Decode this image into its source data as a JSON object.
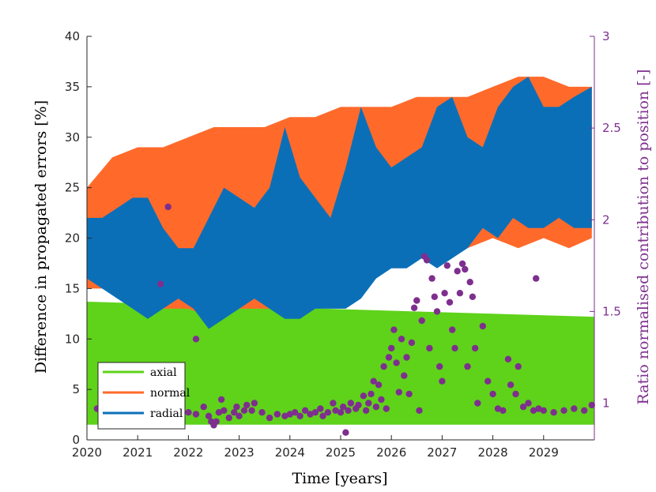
{
  "colors": {
    "axial": "#5fd21a",
    "normal": "#ff6a2b",
    "radial": "#0b6fb8",
    "ratio": "#7e2f8e",
    "axis": "#262626"
  },
  "chart_data": {
    "type": "area",
    "xlabel": "Time [years]",
    "ylabel": "Difference in propagated errors [%]",
    "ylabel_right": "Ratio normalised contribution to position [-]",
    "xlim": [
      2020,
      2030
    ],
    "ylim": [
      0,
      40
    ],
    "ylim_right": [
      0.8,
      3
    ],
    "x_ticks": [
      "2020",
      "2021",
      "2022",
      "2023",
      "2024",
      "2025",
      "2026",
      "2027",
      "2028",
      "2029"
    ],
    "y_ticks": [
      "0",
      "5",
      "10",
      "15",
      "20",
      "25",
      "30",
      "35",
      "40"
    ],
    "y_ticks_right": [
      "1",
      "1.5",
      "2",
      "2.5",
      "3"
    ],
    "legend": {
      "position": "bottom-left",
      "entries": [
        "axial",
        "normal",
        "radial"
      ]
    },
    "series": [
      {
        "name": "axial",
        "x": [
          2020,
          2030
        ],
        "lower": [
          1.5,
          1.5
        ],
        "upper": [
          13.7,
          12.2
        ]
      },
      {
        "name": "normal",
        "x": [
          2020.0,
          2020.5,
          2021.0,
          2021.5,
          2022.0,
          2022.5,
          2023.0,
          2023.5,
          2024.0,
          2024.5,
          2025.0,
          2025.5,
          2026.0,
          2026.5,
          2027.0,
          2027.5,
          2028.0,
          2028.5,
          2029.0,
          2029.5,
          2029.95
        ],
        "lower": [
          15,
          15,
          14,
          13,
          13,
          12,
          13,
          13,
          13,
          13,
          14,
          17,
          19,
          21,
          19,
          19,
          20,
          19,
          20,
          19,
          20
        ],
        "upper": [
          25,
          28,
          29,
          29,
          30,
          31,
          31,
          31,
          32,
          32,
          33,
          33,
          33,
          34,
          34,
          34,
          35,
          36,
          36,
          35,
          35
        ]
      },
      {
        "name": "radial",
        "x": [
          2020.0,
          2020.3,
          2020.6,
          2020.9,
          2021.2,
          2021.5,
          2021.8,
          2022.1,
          2022.4,
          2022.7,
          2023.0,
          2023.3,
          2023.6,
          2023.9,
          2024.2,
          2024.5,
          2024.8,
          2025.1,
          2025.4,
          2025.7,
          2026.0,
          2026.3,
          2026.6,
          2026.9,
          2027.2,
          2027.5,
          2027.8,
          2028.1,
          2028.4,
          2028.7,
          2029.0,
          2029.3,
          2029.6,
          2029.95
        ],
        "lower": [
          16,
          15,
          14,
          13,
          12,
          13,
          14,
          13,
          11,
          12,
          13,
          14,
          13,
          12,
          12,
          13,
          13,
          13,
          14,
          16,
          17,
          17,
          18,
          17,
          18,
          19,
          21,
          20,
          22,
          21,
          21,
          22,
          21,
          21
        ],
        "upper": [
          22,
          22,
          23,
          24,
          24,
          21,
          19,
          19,
          22,
          25,
          24,
          23,
          25,
          31,
          26,
          24,
          22,
          27,
          33,
          29,
          27,
          28,
          29,
          33,
          34,
          30,
          29,
          33,
          35,
          36,
          33,
          33,
          34,
          35
        ]
      },
      {
        "name": "ratio",
        "axis": "right",
        "type": "scatter",
        "points": [
          [
            2020.2,
            0.97
          ],
          [
            2020.45,
            0.95
          ],
          [
            2020.7,
            0.94
          ],
          [
            2020.9,
            0.96
          ],
          [
            2021.1,
            0.95
          ],
          [
            2021.3,
            0.97
          ],
          [
            2021.45,
            1.65
          ],
          [
            2021.55,
            0.95
          ],
          [
            2021.6,
            2.07
          ],
          [
            2021.8,
            0.96
          ],
          [
            2022.0,
            0.95
          ],
          [
            2022.15,
            0.94
          ],
          [
            2022.15,
            1.35
          ],
          [
            2022.3,
            0.98
          ],
          [
            2022.4,
            0.93
          ],
          [
            2022.45,
            0.9
          ],
          [
            2022.5,
            0.88
          ],
          [
            2022.55,
            0.9
          ],
          [
            2022.6,
            0.95
          ],
          [
            2022.65,
            1.02
          ],
          [
            2022.7,
            0.96
          ],
          [
            2022.8,
            0.92
          ],
          [
            2022.9,
            0.95
          ],
          [
            2022.95,
            0.98
          ],
          [
            2023.0,
            0.93
          ],
          [
            2023.1,
            0.96
          ],
          [
            2023.15,
            0.99
          ],
          [
            2023.25,
            0.96
          ],
          [
            2023.3,
            1.0
          ],
          [
            2023.45,
            0.95
          ],
          [
            2023.6,
            0.92
          ],
          [
            2023.75,
            0.94
          ],
          [
            2023.9,
            0.93
          ],
          [
            2024.0,
            0.94
          ],
          [
            2024.1,
            0.95
          ],
          [
            2024.2,
            0.93
          ],
          [
            2024.3,
            0.96
          ],
          [
            2024.4,
            0.94
          ],
          [
            2024.5,
            0.95
          ],
          [
            2024.6,
            0.97
          ],
          [
            2024.65,
            0.93
          ],
          [
            2024.75,
            0.95
          ],
          [
            2024.85,
            1.0
          ],
          [
            2024.9,
            0.96
          ],
          [
            2025.0,
            0.95
          ],
          [
            2025.05,
            0.98
          ],
          [
            2025.1,
            0.84
          ],
          [
            2025.15,
            0.96
          ],
          [
            2025.2,
            1.0
          ],
          [
            2025.3,
            0.97
          ],
          [
            2025.35,
            0.99
          ],
          [
            2025.45,
            1.04
          ],
          [
            2025.5,
            0.96
          ],
          [
            2025.55,
            1.0
          ],
          [
            2025.6,
            1.05
          ],
          [
            2025.65,
            1.12
          ],
          [
            2025.7,
            0.98
          ],
          [
            2025.75,
            1.1
          ],
          [
            2025.8,
            1.02
          ],
          [
            2025.85,
            1.2
          ],
          [
            2025.9,
            0.97
          ],
          [
            2025.95,
            1.25
          ],
          [
            2026.0,
            1.3
          ],
          [
            2026.05,
            1.4
          ],
          [
            2026.1,
            1.22
          ],
          [
            2026.15,
            1.06
          ],
          [
            2026.2,
            1.35
          ],
          [
            2026.25,
            1.15
          ],
          [
            2026.3,
            1.25
          ],
          [
            2026.35,
            1.05
          ],
          [
            2026.4,
            1.33
          ],
          [
            2026.45,
            1.52
          ],
          [
            2026.5,
            1.56
          ],
          [
            2026.55,
            0.96
          ],
          [
            2026.6,
            1.45
          ],
          [
            2026.65,
            1.8
          ],
          [
            2026.7,
            1.78
          ],
          [
            2026.75,
            1.3
          ],
          [
            2026.8,
            1.68
          ],
          [
            2026.85,
            1.58
          ],
          [
            2026.9,
            1.5
          ],
          [
            2026.95,
            1.2
          ],
          [
            2027.0,
            1.12
          ],
          [
            2027.05,
            1.6
          ],
          [
            2027.1,
            1.75
          ],
          [
            2027.15,
            1.55
          ],
          [
            2027.2,
            1.4
          ],
          [
            2027.25,
            1.3
          ],
          [
            2027.3,
            1.72
          ],
          [
            2027.35,
            1.6
          ],
          [
            2027.4,
            1.76
          ],
          [
            2027.45,
            1.73
          ],
          [
            2027.5,
            1.2
          ],
          [
            2027.55,
            1.66
          ],
          [
            2027.6,
            1.58
          ],
          [
            2027.65,
            1.3
          ],
          [
            2027.7,
            1.0
          ],
          [
            2027.8,
            1.42
          ],
          [
            2027.9,
            1.12
          ],
          [
            2028.0,
            1.05
          ],
          [
            2028.1,
            0.97
          ],
          [
            2028.2,
            0.96
          ],
          [
            2028.3,
            1.24
          ],
          [
            2028.35,
            1.1
          ],
          [
            2028.45,
            1.05
          ],
          [
            2028.5,
            1.2
          ],
          [
            2028.6,
            0.98
          ],
          [
            2028.7,
            1.0
          ],
          [
            2028.8,
            0.96
          ],
          [
            2028.85,
            1.68
          ],
          [
            2028.9,
            0.97
          ],
          [
            2029.0,
            0.96
          ],
          [
            2029.2,
            0.95
          ],
          [
            2029.4,
            0.96
          ],
          [
            2029.6,
            0.97
          ],
          [
            2029.8,
            0.96
          ],
          [
            2029.95,
            0.99
          ]
        ]
      }
    ]
  }
}
